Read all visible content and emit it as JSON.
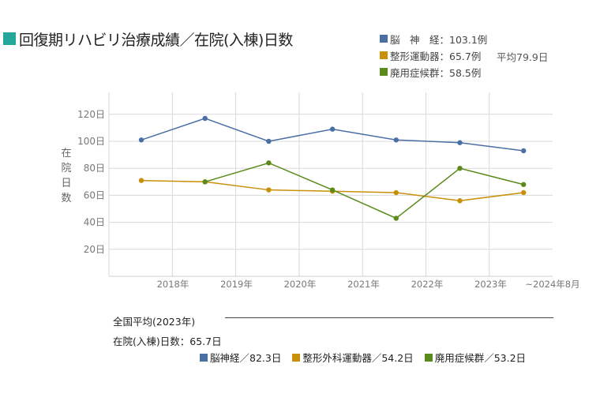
{
  "title": "回復期リハビリ治療成績／在院(入棟)日数",
  "top_legend": [
    {
      "label": "脳　神　経：103.1例",
      "color": "#4a6fa5"
    },
    {
      "label": "整形運動器：65.7例",
      "color": "#c8900a"
    },
    {
      "label": "廃用症候群：58.5例",
      "color": "#5a8a1a"
    }
  ],
  "overall_average": "平均79.9日",
  "national": {
    "title": "全国平均(2023年)",
    "stay_label": "在院(入棟)日数：65.7日",
    "legend": [
      {
        "label": "脳神経／82.3日",
        "color": "#4a6fa5"
      },
      {
        "label": "整形外科運動器／54.2日",
        "color": "#c8900a"
      },
      {
        "label": "廃用症候群／53.2日",
        "color": "#5a8a1a"
      }
    ]
  },
  "chart_data": {
    "type": "line",
    "ylabel": "在院日数",
    "x_ticks": [
      "2018年",
      "2019年",
      "2020年",
      "2021年",
      "2022年",
      "2023年",
      "~2024年8月"
    ],
    "y_ticks": [
      "20日",
      "40日",
      "60日",
      "80日",
      "100日",
      "120日"
    ],
    "ylim": [
      0,
      130
    ],
    "grid": true,
    "series": [
      {
        "color": "#4a6fa5",
        "values": [
          101,
          117,
          100,
          109,
          101,
          99,
          93
        ]
      },
      {
        "color": "#c8900a",
        "values": [
          71,
          70,
          64,
          63,
          62,
          56,
          62
        ]
      },
      {
        "color": "#5a8a1a",
        "values": [
          null,
          70,
          84,
          64,
          43,
          80,
          68
        ]
      }
    ]
  }
}
